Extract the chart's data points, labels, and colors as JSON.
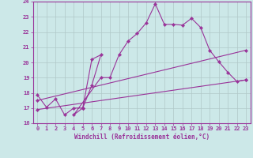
{
  "title": "",
  "xlabel": "Windchill (Refroidissement éolien,°C)",
  "background_color": "#cce8e8",
  "line_color": "#993399",
  "grid_color": "#b0c8c8",
  "xlim": [
    -0.5,
    23.5
  ],
  "ylim": [
    16,
    24
  ],
  "yticks": [
    16,
    17,
    18,
    19,
    20,
    21,
    22,
    23,
    24
  ],
  "xticks": [
    0,
    1,
    2,
    3,
    4,
    5,
    6,
    7,
    8,
    9,
    10,
    11,
    12,
    13,
    14,
    15,
    16,
    17,
    18,
    19,
    20,
    21,
    22,
    23
  ],
  "line1_x": [
    0,
    1,
    2,
    3,
    4,
    5,
    6,
    7,
    6,
    5,
    4,
    7,
    8,
    9,
    10,
    11,
    12,
    13,
    14,
    15,
    16,
    17,
    18,
    19,
    20,
    21,
    22,
    23
  ],
  "line1_y": [
    17.85,
    17.05,
    17.6,
    16.55,
    17.0,
    17.0,
    20.2,
    20.5,
    18.5,
    17.0,
    16.55,
    19.0,
    19.0,
    20.5,
    21.4,
    21.9,
    22.6,
    23.85,
    22.5,
    22.5,
    22.45,
    22.9,
    22.3,
    20.8,
    20.05,
    19.35,
    18.75,
    18.85
  ],
  "line2_x": [
    0,
    23
  ],
  "line2_y": [
    17.5,
    20.8
  ],
  "line3_x": [
    0,
    23
  ],
  "line3_y": [
    16.9,
    18.85
  ]
}
